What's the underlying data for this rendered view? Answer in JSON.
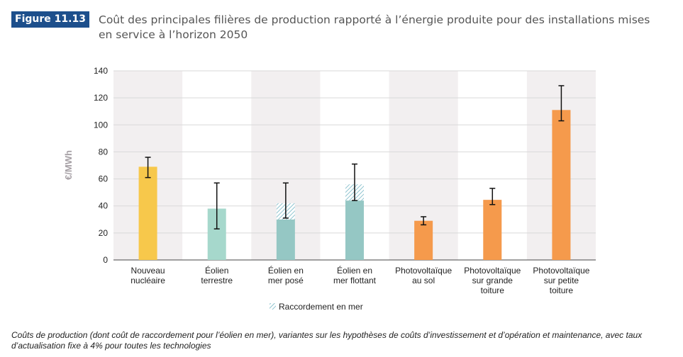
{
  "figure": {
    "label": "Figure 11.13",
    "title": "Coût des principales filières de production rapporté à l’énergie produite pour des installations mises en service à l’horizon 2050"
  },
  "caption": "Coûts de production (dont coût de raccordement pour l’éolien en mer), variantes sur les hypothèses de coûts d’investissement et d’opération et maintenance, avec taux d’actualisation fixe à 4% pour toutes les technologies",
  "colors": {
    "nuclear": "#f7c84b",
    "onshore_wind": "#a6d8cc",
    "offshore_wind": "#95c7c4",
    "connection_hatch": "#8fc4cf",
    "solar": "#f59a4c",
    "band": "#f2eff0",
    "grid": "#d9d9d9",
    "axis_label": "#a6a0a5",
    "error_bar": "#111111"
  },
  "chart_data": {
    "type": "bar",
    "stacked": true,
    "ylabel": "€/MWh",
    "ylim": [
      0,
      140
    ],
    "yticks": [
      0,
      20,
      40,
      60,
      80,
      100,
      120,
      140
    ],
    "grid": true,
    "legend_position": "bottom-center",
    "categories": [
      [
        "Nouveau",
        "nucléaire"
      ],
      [
        "Éolien",
        "terrestre"
      ],
      [
        "Éolien en",
        "mer posé"
      ],
      [
        "Éolien en",
        "mer flottant"
      ],
      [
        "Photovoltaïque",
        "au sol"
      ],
      [
        "Photovoltaïque",
        "sur grande",
        "toiture"
      ],
      [
        "Photovoltaïque",
        "sur petite",
        "toiture"
      ]
    ],
    "series": [
      {
        "values": [
          69,
          38,
          30,
          44,
          29,
          44.5,
          111
        ],
        "colors": [
          "#f7c84b",
          "#a6d8cc",
          "#95c7c4",
          "#95c7c4",
          "#f59a4c",
          "#f59a4c",
          "#f59a4c"
        ]
      },
      {
        "name": "Raccordement en mer",
        "pattern": "hatch",
        "values": [
          0,
          0,
          12,
          12,
          0,
          0,
          0
        ]
      }
    ],
    "error_bars": [
      {
        "low": 61,
        "high": 76
      },
      {
        "low": 23,
        "high": 57
      },
      {
        "low": 31,
        "high": 57
      },
      {
        "low": 44,
        "high": 71
      },
      {
        "low": 26,
        "high": 32
      },
      {
        "low": 41,
        "high": 53
      },
      {
        "low": 103,
        "high": 129
      }
    ],
    "legend": [
      "Raccordement en mer"
    ]
  }
}
